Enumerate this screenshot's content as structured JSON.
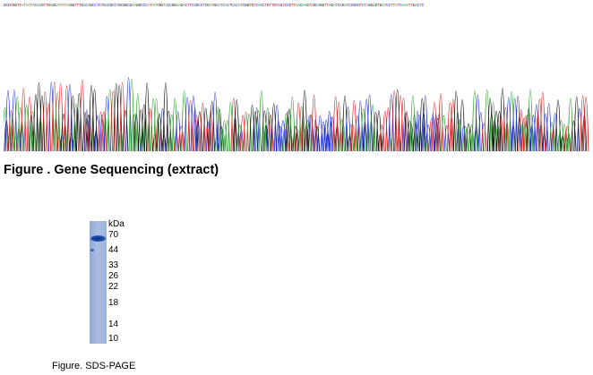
{
  "sequencing": {
    "colors": {
      "A": "#2ca02c",
      "C": "#1f2fd6",
      "G": "#111111",
      "T": "#e02020"
    },
    "caption": "Figure . Gene Sequencing (extract)"
  },
  "sds_page": {
    "unit_label": "kDa",
    "markers": [
      {
        "label": "70",
        "kda": 70
      },
      {
        "label": "44",
        "kda": 44
      },
      {
        "label": "33",
        "kda": 33
      },
      {
        "label": "26",
        "kda": 26
      },
      {
        "label": "22",
        "kda": 22
      },
      {
        "label": "18",
        "kda": 18
      },
      {
        "label": "14",
        "kda": 14
      },
      {
        "label": "10",
        "kda": 10
      }
    ],
    "main_band_kda": 55,
    "caption": "Figure. SDS-PAGE"
  }
}
